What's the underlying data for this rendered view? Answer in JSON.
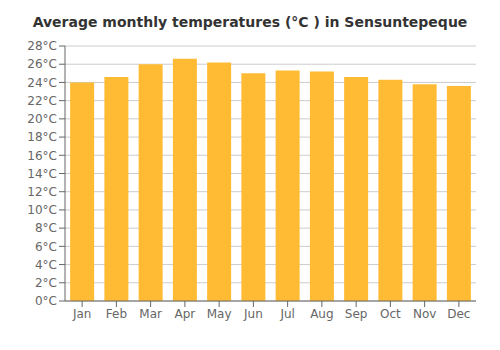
{
  "chart_data": {
    "type": "bar",
    "title": "Average monthly temperatures (°C ) in Sensuntepeque",
    "categories": [
      "Jan",
      "Feb",
      "Mar",
      "Apr",
      "May",
      "Jun",
      "Jul",
      "Aug",
      "Sep",
      "Oct",
      "Nov",
      "Dec"
    ],
    "values": [
      24.0,
      24.6,
      26.0,
      26.6,
      26.2,
      25.0,
      25.3,
      25.2,
      24.6,
      24.3,
      23.8,
      23.6
    ],
    "color": "#FFBB33",
    "ylim": [
      0,
      28
    ],
    "yticks": [
      {
        "value": 0,
        "label": "0°C"
      },
      {
        "value": 2,
        "label": "2°C"
      },
      {
        "value": 4,
        "label": "4°C"
      },
      {
        "value": 6,
        "label": "6°C"
      },
      {
        "value": 8,
        "label": "8°C"
      },
      {
        "value": 10,
        "label": "10°C"
      },
      {
        "value": 12,
        "label": "12°C"
      },
      {
        "value": 14,
        "label": "14°C"
      },
      {
        "value": 16,
        "label": "16°C"
      },
      {
        "value": 18,
        "label": "18°C"
      },
      {
        "value": 20,
        "label": "20°C"
      },
      {
        "value": 22,
        "label": "22°C"
      },
      {
        "value": 24,
        "label": "24°C"
      },
      {
        "value": 26,
        "label": "26°C"
      },
      {
        "value": 28,
        "label": "28°C"
      }
    ],
    "grid": true
  }
}
